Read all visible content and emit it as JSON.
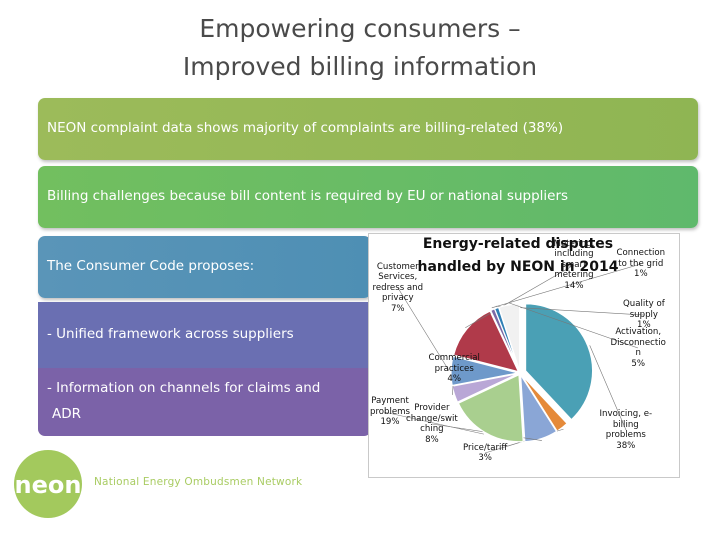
{
  "slide": {
    "title_line1": "Empowering consumers –",
    "title_line2": "Improved billing information",
    "bullets": [
      "NEON complaint data shows majority of complaints are billing-related (38%)",
      "Billing challenges because bill content is required by EU or national suppliers",
      "The Consumer Code proposes:",
      "- Unified framework across suppliers",
      "- Information on channels for claims and",
      "ADR"
    ]
  },
  "logo": {
    "brand": "neon",
    "full_name": "National Energy Ombudsmen Network",
    "color": "#a3c95d"
  },
  "chart_data": {
    "type": "pie",
    "title_line1": "Energy-related disputes",
    "title_line2": "handled by NEON in 2014",
    "slices": [
      {
        "label": [
          "Invoicing, e-",
          "billing",
          "problems"
        ],
        "value": 38,
        "value_label": "38%",
        "color": "#4aa0b5"
      },
      {
        "label": [
          "Price/tariff"
        ],
        "value": 3,
        "value_label": "3%",
        "color": "#e58a3a"
      },
      {
        "label": [
          "Provider",
          "change/swit",
          "ching"
        ],
        "value": 8,
        "value_label": "8%",
        "color": "#8aa6d6"
      },
      {
        "label": [
          "Payment",
          "problems"
        ],
        "value": 19,
        "value_label": "19%",
        "color": "#a9cf8f"
      },
      {
        "label": [
          "Commercial",
          "practices"
        ],
        "value": 4,
        "value_label": "4%",
        "color": "#b9a7d6"
      },
      {
        "label": [
          "Customer",
          "Services,",
          "redress and",
          "privacy"
        ],
        "value": 7,
        "value_label": "7%",
        "color": "#6e99ca"
      },
      {
        "label": [
          "Metering,",
          "including",
          "smart",
          "metering"
        ],
        "value": 14,
        "value_label": "14%",
        "color": "#b03a4a"
      },
      {
        "label": [
          "Connection",
          "to the grid"
        ],
        "value": 1,
        "value_label": "1%",
        "color": "#7c6aa6"
      },
      {
        "label": [
          "Quality of",
          "supply"
        ],
        "value": 1,
        "value_label": "1%",
        "color": "#2f7fb5"
      },
      {
        "label": [
          "Activation,",
          "Disconnectio",
          "n"
        ],
        "value": 5,
        "value_label": "5%",
        "color": "#f1f1f1"
      }
    ]
  }
}
